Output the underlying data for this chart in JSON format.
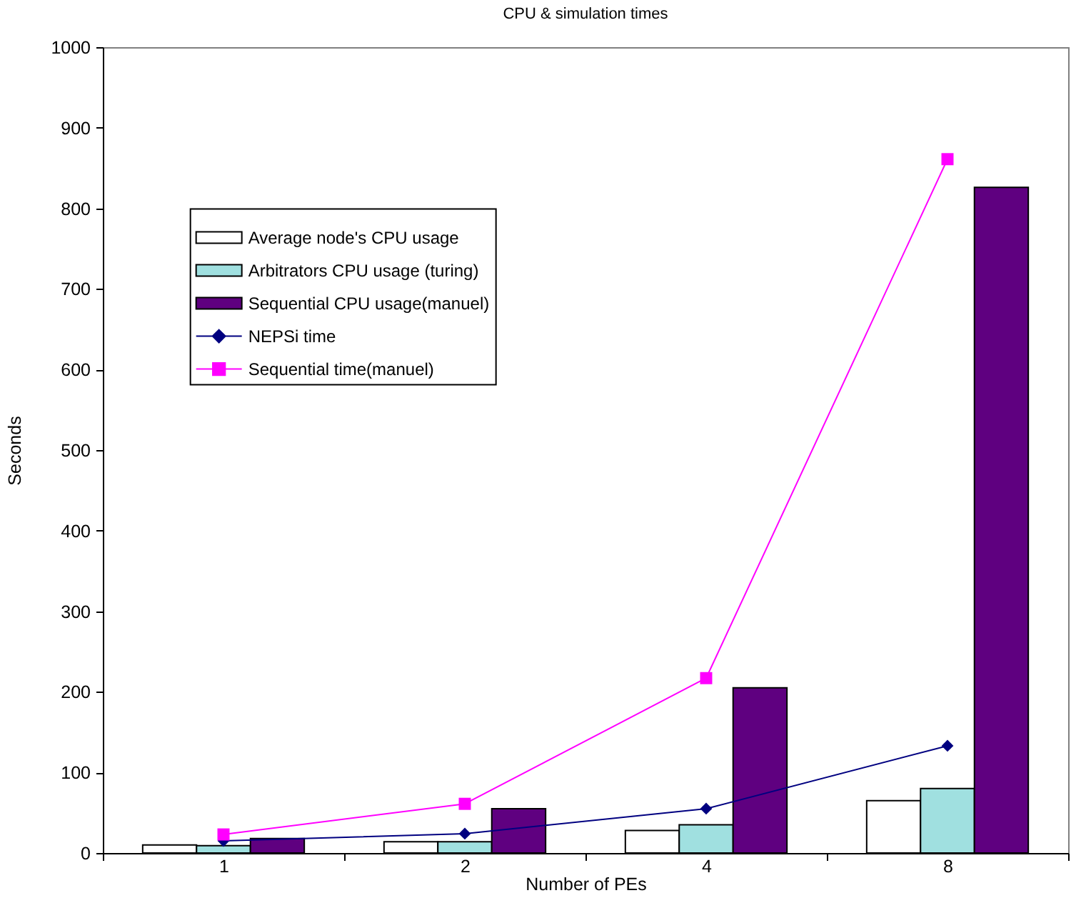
{
  "chart_data": {
    "type": "bar",
    "title": "CPU & simulation times",
    "xlabel": "Number of PEs",
    "ylabel": "Seconds",
    "categories": [
      "1",
      "2",
      "4",
      "8"
    ],
    "series": [
      {
        "name": "Average node's CPU usage",
        "color": "#ffffff",
        "values": [
          10,
          14,
          28,
          65
        ]
      },
      {
        "name": "Arbitrators CPU usage (turing)",
        "color": "#a0e0e0",
        "values": [
          9,
          14,
          35,
          80
        ]
      },
      {
        "name": "Sequential CPU usage(manuel)",
        "color": "#5f0080",
        "values": [
          18,
          55,
          205,
          826
        ]
      },
      {
        "name": "NEPSi time",
        "type": "line",
        "color": "#000080",
        "marker": "diamond",
        "line_style": "solid",
        "values": [
          15,
          24,
          55,
          133
        ]
      },
      {
        "name": "Sequential time(manuel)",
        "type": "line",
        "color": "#ff00ff",
        "marker": "square",
        "line_style": "solid",
        "values": [
          23,
          61,
          217,
          861
        ]
      }
    ],
    "ylim": [
      0,
      1000
    ],
    "yticks": [
      0,
      100,
      200,
      300,
      400,
      500,
      600,
      700,
      800,
      900,
      1000
    ],
    "grid": false,
    "legend": "top left"
  }
}
